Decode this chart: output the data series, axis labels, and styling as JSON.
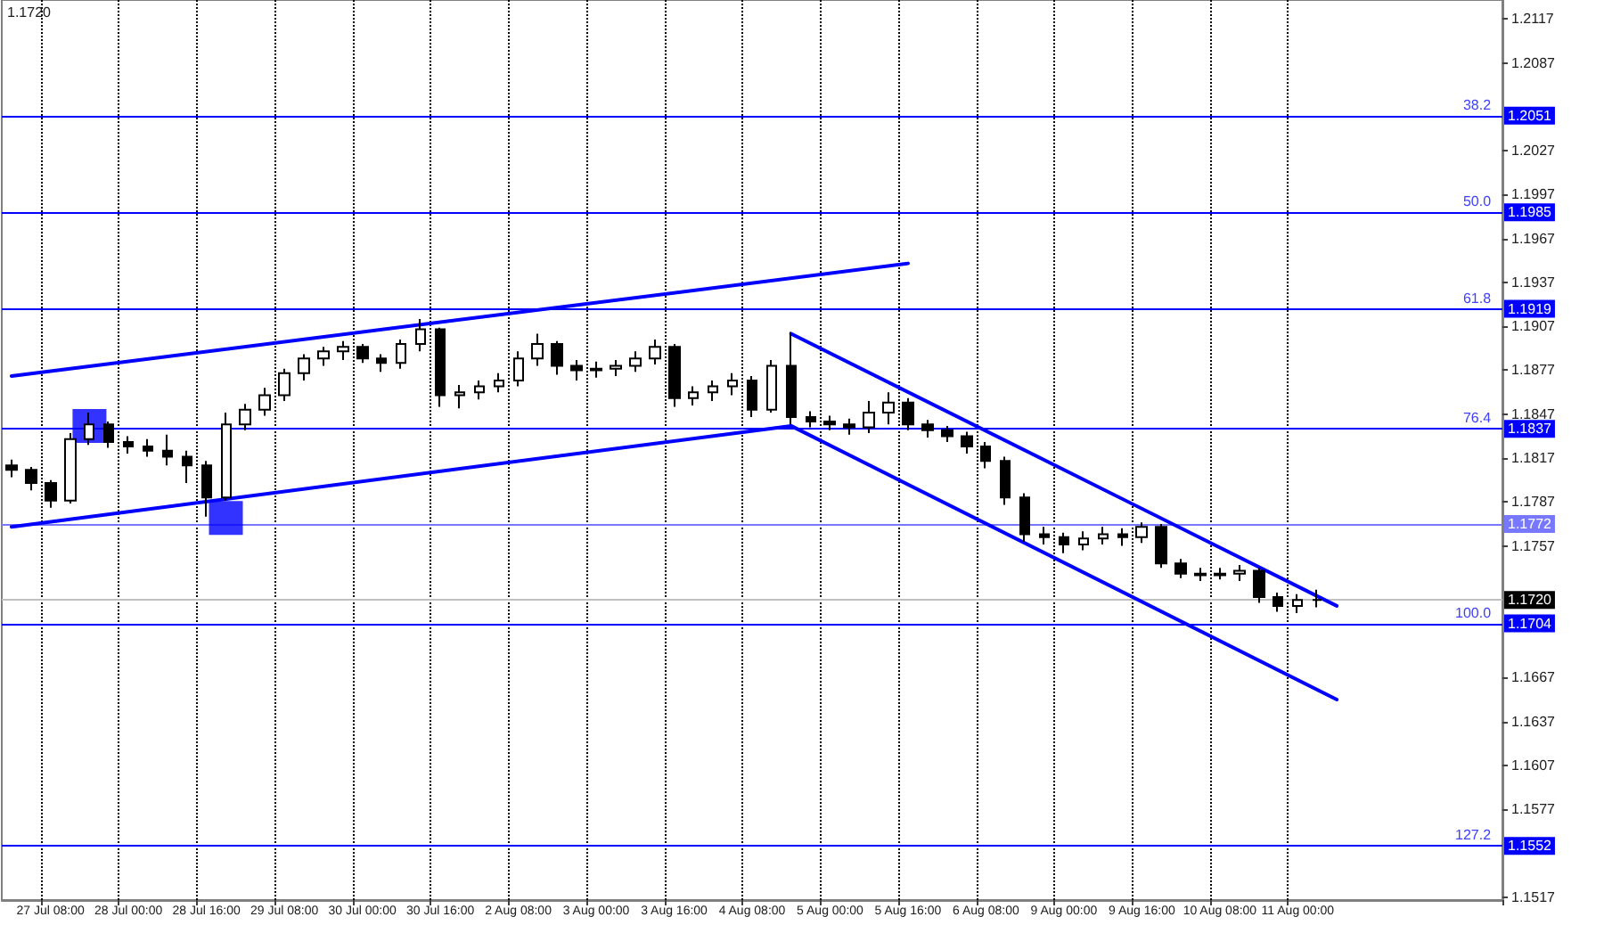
{
  "chart_data": {
    "type": "candlestick",
    "color": "#000000",
    "annotations": [
      "1.1720",
      {
        "text": "38.2",
        "y": 1.2051
      },
      {
        "text": "50.0",
        "y": 1.1985
      },
      {
        "text": "61.8",
        "y": 1.1919
      },
      {
        "text": "76.4",
        "y": 1.1837
      },
      {
        "text": "100.0",
        "y": 1.1704
      },
      {
        "text": "127.2",
        "y": 1.1552
      }
    ],
    "categories": [
      null,
      null,
      "27 Jul 08:00",
      null,
      null,
      null,
      "28 Jul 00:00",
      null,
      null,
      null,
      "28 Jul 16:00",
      null,
      null,
      null,
      "29 Jul 08:00",
      null,
      null,
      null,
      "30 Jul 00:00",
      null,
      null,
      null,
      "30 Jul 16:00",
      null,
      null,
      null,
      "2 Aug 08:00",
      null,
      null,
      null,
      "3 Aug 00:00",
      null,
      null,
      null,
      "3 Aug 16:00",
      null,
      null,
      null,
      "4 Aug 08:00",
      null,
      null,
      null,
      "5 Aug 00:00",
      null,
      null,
      null,
      "5 Aug 16:00",
      null,
      null,
      null,
      "6 Aug 08:00",
      null,
      null,
      null,
      "9 Aug 00:00",
      null,
      null,
      null,
      "9 Aug 16:00",
      null,
      null,
      null,
      "10 Aug 08:00",
      null,
      null,
      null,
      "11 Aug 00:00",
      null,
      null,
      null,
      null,
      null,
      null,
      null,
      null,
      null,
      null
    ],
    "ohlc": [
      [
        1.1812,
        1.1816,
        1.1804,
        1.1809
      ],
      [
        1.1809,
        1.1811,
        1.1795,
        1.18
      ],
      [
        1.18,
        1.1802,
        1.1783,
        1.1788
      ],
      [
        1.1788,
        1.1834,
        1.1786,
        1.183
      ],
      [
        1.183,
        1.1848,
        1.1826,
        1.184
      ],
      [
        1.184,
        1.1842,
        1.1824,
        1.1828
      ],
      [
        1.1828,
        1.1832,
        1.182,
        1.1825
      ],
      [
        1.1825,
        1.183,
        1.1818,
        1.1822
      ],
      [
        1.1822,
        1.1833,
        1.1812,
        1.1818
      ],
      [
        1.1818,
        1.1822,
        1.18,
        1.1812
      ],
      [
        1.1812,
        1.1815,
        1.1777,
        1.179
      ],
      [
        1.179,
        1.1848,
        1.1788,
        1.184
      ],
      [
        1.184,
        1.1854,
        1.1836,
        1.185
      ],
      [
        1.185,
        1.1865,
        1.1846,
        1.186
      ],
      [
        1.186,
        1.1878,
        1.1856,
        1.1875
      ],
      [
        1.1875,
        1.1888,
        1.187,
        1.1885
      ],
      [
        1.1885,
        1.1893,
        1.188,
        1.189
      ],
      [
        1.189,
        1.1897,
        1.1884,
        1.1893
      ],
      [
        1.1893,
        1.1895,
        1.1882,
        1.1885
      ],
      [
        1.1885,
        1.1888,
        1.1876,
        1.1882
      ],
      [
        1.1882,
        1.1898,
        1.1878,
        1.1895
      ],
      [
        1.1895,
        1.1912,
        1.189,
        1.1905
      ],
      [
        1.1905,
        1.1906,
        1.1852,
        1.186
      ],
      [
        1.186,
        1.1867,
        1.1851,
        1.1862
      ],
      [
        1.1862,
        1.187,
        1.1857,
        1.1866
      ],
      [
        1.1866,
        1.1875,
        1.1862,
        1.187
      ],
      [
        1.187,
        1.189,
        1.1866,
        1.1885
      ],
      [
        1.1885,
        1.1902,
        1.188,
        1.1895
      ],
      [
        1.1895,
        1.1897,
        1.1874,
        1.188
      ],
      [
        1.188,
        1.1884,
        1.187,
        1.1877
      ],
      [
        1.1877,
        1.1883,
        1.1872,
        1.1878
      ],
      [
        1.1878,
        1.1884,
        1.1873,
        1.188
      ],
      [
        1.188,
        1.189,
        1.1876,
        1.1885
      ],
      [
        1.1885,
        1.1898,
        1.1881,
        1.1893
      ],
      [
        1.1893,
        1.1895,
        1.1852,
        1.1858
      ],
      [
        1.1858,
        1.1866,
        1.1853,
        1.1862
      ],
      [
        1.1862,
        1.187,
        1.1856,
        1.1866
      ],
      [
        1.1866,
        1.1875,
        1.186,
        1.187
      ],
      [
        1.187,
        1.1873,
        1.1845,
        1.185
      ],
      [
        1.185,
        1.1884,
        1.1848,
        1.188
      ],
      [
        1.188,
        1.1903,
        1.184,
        1.1845
      ],
      [
        1.1845,
        1.1849,
        1.1838,
        1.1842
      ],
      [
        1.1842,
        1.1846,
        1.1836,
        1.184
      ],
      [
        1.184,
        1.1844,
        1.1833,
        1.1838
      ],
      [
        1.1838,
        1.1856,
        1.1834,
        1.1848
      ],
      [
        1.1848,
        1.1862,
        1.184,
        1.1855
      ],
      [
        1.1855,
        1.1858,
        1.1836,
        1.184
      ],
      [
        1.184,
        1.1843,
        1.1831,
        1.1836
      ],
      [
        1.1836,
        1.1839,
        1.1828,
        1.1832
      ],
      [
        1.1832,
        1.1835,
        1.182,
        1.1825
      ],
      [
        1.1825,
        1.1828,
        1.181,
        1.1815
      ],
      [
        1.1815,
        1.1818,
        1.1785,
        1.179
      ],
      [
        1.179,
        1.1793,
        1.176,
        1.1765
      ],
      [
        1.1765,
        1.177,
        1.1758,
        1.1763
      ],
      [
        1.1763,
        1.1766,
        1.1752,
        1.1758
      ],
      [
        1.1758,
        1.1767,
        1.1754,
        1.1762
      ],
      [
        1.1762,
        1.177,
        1.1758,
        1.1765
      ],
      [
        1.1765,
        1.1769,
        1.1757,
        1.1763
      ],
      [
        1.1763,
        1.1773,
        1.1759,
        1.177
      ],
      [
        1.177,
        1.1772,
        1.1742,
        1.1745
      ],
      [
        1.1745,
        1.1748,
        1.1735,
        1.1738
      ],
      [
        1.1738,
        1.1742,
        1.1733,
        1.1737
      ],
      [
        1.1737,
        1.1742,
        1.1734,
        1.1738
      ],
      [
        1.1738,
        1.1744,
        1.1733,
        1.174
      ],
      [
        1.174,
        1.1742,
        1.1718,
        1.1722
      ],
      [
        1.1722,
        1.1725,
        1.1712,
        1.1716
      ],
      [
        1.1716,
        1.1724,
        1.1711,
        1.172
      ],
      [
        1.172,
        1.1727,
        1.1715,
        1.172
      ],
      null,
      null,
      null,
      null,
      null,
      null,
      null,
      null,
      null
    ],
    "series": [
      {
        "type": "line",
        "color": "#0000ff",
        "marker": "none",
        "values": [
          1.1873,
          null,
          null,
          null,
          null,
          null,
          null,
          null,
          null,
          null,
          null,
          null,
          null,
          null,
          null,
          null,
          null,
          null,
          null,
          null,
          null,
          null,
          null,
          null,
          null,
          null,
          null,
          null,
          null,
          null,
          null,
          null,
          null,
          null,
          null,
          null,
          null,
          null,
          null,
          null,
          null,
          null,
          null,
          null,
          null,
          null,
          1.195,
          null,
          null,
          null,
          null,
          null,
          null,
          null,
          null,
          null,
          null,
          null,
          null,
          null,
          null,
          null,
          null,
          null,
          null,
          null,
          null,
          null,
          null,
          null,
          null,
          null,
          null,
          null,
          null,
          null,
          null
        ]
      },
      {
        "type": "line",
        "color": "#0000ff",
        "marker": "none",
        "values": [
          1.177,
          null,
          null,
          null,
          null,
          null,
          null,
          null,
          null,
          null,
          null,
          null,
          null,
          null,
          null,
          null,
          null,
          null,
          null,
          null,
          null,
          null,
          null,
          null,
          null,
          null,
          null,
          null,
          null,
          null,
          null,
          null,
          null,
          null,
          null,
          null,
          null,
          null,
          null,
          null,
          1.1839,
          null,
          null,
          null,
          null,
          null,
          null,
          null,
          null,
          null,
          null,
          null,
          null,
          null,
          null,
          null,
          null,
          null,
          null,
          null,
          null,
          null,
          null,
          null,
          null,
          null,
          null,
          null,
          null,
          null,
          null,
          null,
          null,
          null,
          null,
          null,
          null
        ]
      },
      {
        "type": "line",
        "color": "#0000ff",
        "marker": "none",
        "values": [
          null,
          null,
          null,
          null,
          null,
          null,
          null,
          null,
          null,
          null,
          null,
          null,
          null,
          null,
          null,
          null,
          null,
          null,
          null,
          null,
          null,
          null,
          null,
          null,
          null,
          null,
          null,
          null,
          null,
          null,
          null,
          null,
          null,
          null,
          null,
          null,
          null,
          null,
          null,
          null,
          1.1902,
          null,
          null,
          null,
          null,
          null,
          null,
          null,
          null,
          null,
          null,
          null,
          null,
          null,
          null,
          null,
          null,
          null,
          null,
          null,
          null,
          null,
          null,
          null,
          null,
          null,
          null,
          null,
          1.1716,
          null,
          null,
          null,
          null,
          null,
          null,
          null,
          null
        ]
      },
      {
        "type": "line",
        "color": "#0000ff",
        "marker": "none",
        "values": [
          null,
          null,
          null,
          null,
          null,
          null,
          null,
          null,
          null,
          null,
          null,
          null,
          null,
          null,
          null,
          null,
          null,
          null,
          null,
          null,
          null,
          null,
          null,
          null,
          null,
          null,
          null,
          null,
          null,
          null,
          null,
          null,
          null,
          null,
          null,
          null,
          null,
          null,
          null,
          null,
          1.1839,
          null,
          null,
          null,
          null,
          null,
          null,
          null,
          null,
          null,
          null,
          null,
          null,
          null,
          null,
          null,
          null,
          null,
          null,
          null,
          null,
          null,
          null,
          null,
          null,
          null,
          null,
          null,
          1.1652,
          null,
          null,
          null,
          null,
          null,
          null,
          null,
          null
        ]
      },
      {
        "type": "scatter",
        "color": "#0000ff",
        "marker": "square",
        "values": [
          null,
          null,
          null,
          null,
          1.1839,
          null,
          null,
          null,
          null,
          null,
          null,
          1.1776,
          null,
          null,
          null,
          null,
          null,
          null,
          null,
          null,
          null,
          null,
          null,
          null,
          null,
          null,
          null,
          null,
          null,
          null,
          null,
          null,
          null,
          null,
          null,
          null,
          null,
          null,
          null,
          null,
          null,
          null,
          null,
          null,
          null,
          null,
          null,
          null,
          null,
          null,
          null,
          null,
          null,
          null,
          null,
          null,
          null,
          null,
          null,
          null,
          null,
          null,
          null,
          null,
          null,
          null,
          null,
          null,
          null,
          null,
          null,
          null,
          null,
          null,
          null,
          null,
          null
        ]
      }
    ],
    "grid": "x",
    "ylim": [
      1.1515,
      1.213
    ],
    "yticks": [
      1.1517,
      1.1577,
      1.1607,
      1.1637,
      1.1667,
      1.1757,
      1.1787,
      1.1817,
      1.1847,
      1.1877,
      1.1907,
      1.1937,
      1.1967,
      1.1997,
      1.2027,
      1.2087,
      1.2117
    ],
    "ref_lines": [
      {
        "axis": "y",
        "value": 1.2051,
        "label": "1.2051",
        "color": "#0000ff"
      },
      {
        "axis": "y",
        "value": 1.1985,
        "label": "1.1985",
        "color": "#0000ff"
      },
      {
        "axis": "y",
        "value": 1.1919,
        "label": "1.1919",
        "color": "#0000ff"
      },
      {
        "axis": "y",
        "value": 1.1837,
        "label": "1.1837",
        "color": "#0000ff"
      },
      {
        "axis": "y",
        "value": 1.1772,
        "label": "1.1772",
        "color": "#7777ff"
      },
      {
        "axis": "y",
        "value": 1.1704,
        "label": "1.1704",
        "color": "#0000ff"
      },
      {
        "axis": "y",
        "value": 1.1552,
        "label": "1.1552",
        "color": "#0000ff"
      },
      {
        "axis": "y",
        "value": 1.172,
        "label": "1.1720",
        "color": "#c0c0c0"
      }
    ]
  }
}
